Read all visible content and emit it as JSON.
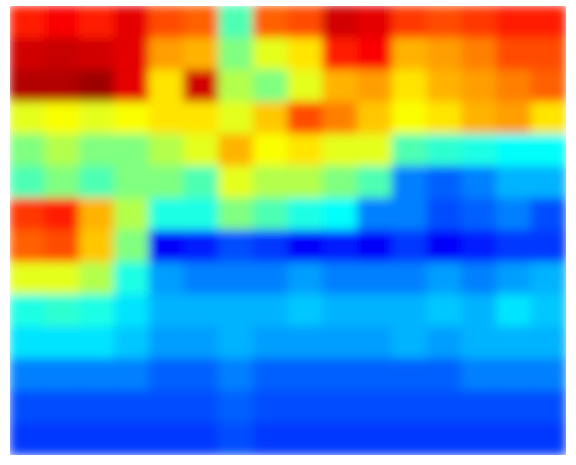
{
  "chart_data": {
    "type": "heatmap",
    "colormap": "jet",
    "clim": [
      0,
      1
    ],
    "values": [
      [
        0.85,
        0.88,
        0.85,
        0.9,
        0.8,
        0.78,
        0.45,
        0.78,
        0.8,
        0.92,
        0.9,
        0.82,
        0.8,
        0.82,
        0.85,
        0.85
      ],
      [
        0.92,
        0.93,
        0.92,
        0.9,
        0.72,
        0.7,
        0.5,
        0.6,
        0.65,
        0.85,
        0.88,
        0.7,
        0.72,
        0.75,
        0.8,
        0.8
      ],
      [
        0.95,
        0.95,
        0.97,
        0.9,
        0.65,
        0.92,
        0.55,
        0.5,
        0.6,
        0.7,
        0.72,
        0.65,
        0.7,
        0.72,
        0.75,
        0.78
      ],
      [
        0.6,
        0.62,
        0.6,
        0.62,
        0.65,
        0.65,
        0.6,
        0.68,
        0.8,
        0.75,
        0.68,
        0.62,
        0.65,
        0.7,
        0.72,
        0.65
      ],
      [
        0.5,
        0.55,
        0.5,
        0.5,
        0.55,
        0.6,
        0.7,
        0.62,
        0.65,
        0.6,
        0.6,
        0.45,
        0.42,
        0.4,
        0.38,
        0.38
      ],
      [
        0.45,
        0.5,
        0.45,
        0.5,
        0.5,
        0.45,
        0.6,
        0.55,
        0.55,
        0.5,
        0.45,
        0.25,
        0.22,
        0.25,
        0.3,
        0.3
      ],
      [
        0.82,
        0.85,
        0.7,
        0.55,
        0.4,
        0.4,
        0.5,
        0.45,
        0.4,
        0.38,
        0.25,
        0.25,
        0.2,
        0.22,
        0.25,
        0.2
      ],
      [
        0.78,
        0.8,
        0.68,
        0.5,
        0.12,
        0.15,
        0.2,
        0.18,
        0.12,
        0.15,
        0.12,
        0.18,
        0.12,
        0.15,
        0.18,
        0.18
      ],
      [
        0.6,
        0.6,
        0.55,
        0.4,
        0.28,
        0.25,
        0.25,
        0.25,
        0.28,
        0.25,
        0.25,
        0.25,
        0.28,
        0.25,
        0.28,
        0.3
      ],
      [
        0.4,
        0.42,
        0.4,
        0.35,
        0.3,
        0.3,
        0.3,
        0.3,
        0.32,
        0.3,
        0.3,
        0.3,
        0.32,
        0.3,
        0.35,
        0.32
      ],
      [
        0.35,
        0.35,
        0.35,
        0.32,
        0.28,
        0.28,
        0.3,
        0.28,
        0.28,
        0.28,
        0.28,
        0.3,
        0.28,
        0.3,
        0.3,
        0.3
      ],
      [
        0.25,
        0.25,
        0.25,
        0.25,
        0.22,
        0.22,
        0.25,
        0.22,
        0.22,
        0.22,
        0.22,
        0.22,
        0.22,
        0.25,
        0.25,
        0.25
      ],
      [
        0.2,
        0.2,
        0.2,
        0.2,
        0.2,
        0.2,
        0.22,
        0.2,
        0.2,
        0.2,
        0.2,
        0.2,
        0.2,
        0.2,
        0.2,
        0.2
      ],
      [
        0.18,
        0.18,
        0.18,
        0.18,
        0.18,
        0.18,
        0.2,
        0.18,
        0.18,
        0.18,
        0.18,
        0.18,
        0.18,
        0.18,
        0.18,
        0.18
      ]
    ]
  }
}
